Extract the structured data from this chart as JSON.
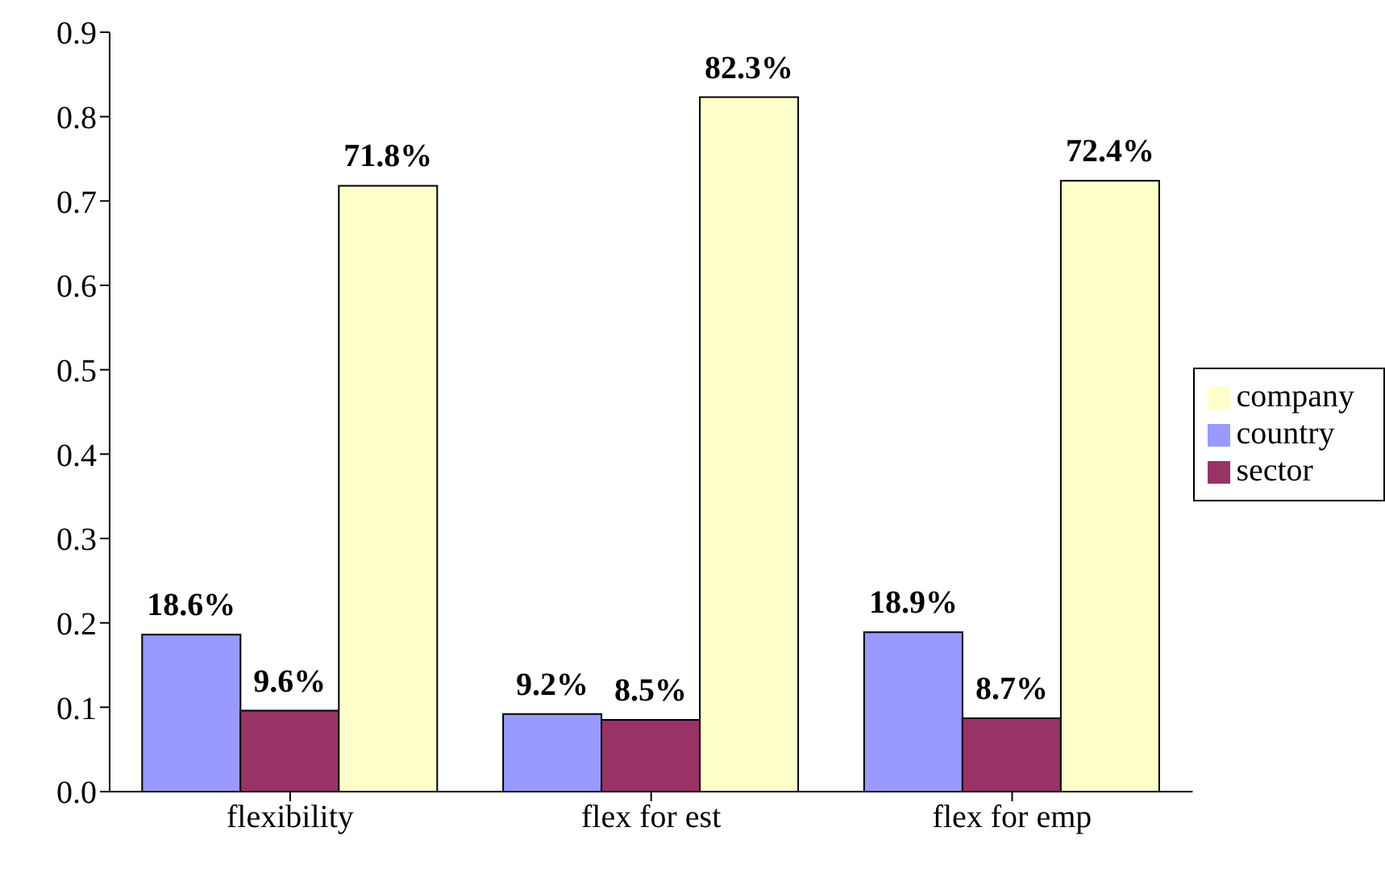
{
  "chart_data": {
    "type": "bar",
    "categories": [
      "flexibility",
      "flex for est",
      "flex for emp"
    ],
    "series": [
      {
        "name": "country",
        "color": "#9999ff",
        "values": [
          0.186,
          0.092,
          0.189
        ],
        "value_labels": [
          "18.6%",
          "9.2%",
          "18.9%"
        ]
      },
      {
        "name": "sector",
        "color": "#993366",
        "values": [
          0.096,
          0.085,
          0.087
        ],
        "value_labels": [
          "9.6%",
          "8.5%",
          "8.7%"
        ]
      },
      {
        "name": "company",
        "color": "#ffffcc",
        "values": [
          0.718,
          0.823,
          0.724
        ],
        "value_labels": [
          "71.8%",
          "82.3%",
          "72.4%"
        ]
      }
    ],
    "ylim": [
      0,
      0.9
    ],
    "yticks": [
      {
        "value": 0,
        "label": "0.0"
      },
      {
        "value": 0.1,
        "label": "0.1"
      },
      {
        "value": 0.2,
        "label": "0.2"
      },
      {
        "value": 0.3,
        "label": "0.3"
      },
      {
        "value": 0.4,
        "label": "0.4"
      },
      {
        "value": 0.5,
        "label": "0.5"
      },
      {
        "value": 0.6,
        "label": "0.6"
      },
      {
        "value": 0.7,
        "label": "0.7"
      },
      {
        "value": 0.8,
        "label": "0.8"
      },
      {
        "value": 0.9,
        "label": "0.9"
      }
    ],
    "grid": false,
    "legend": "right"
  }
}
